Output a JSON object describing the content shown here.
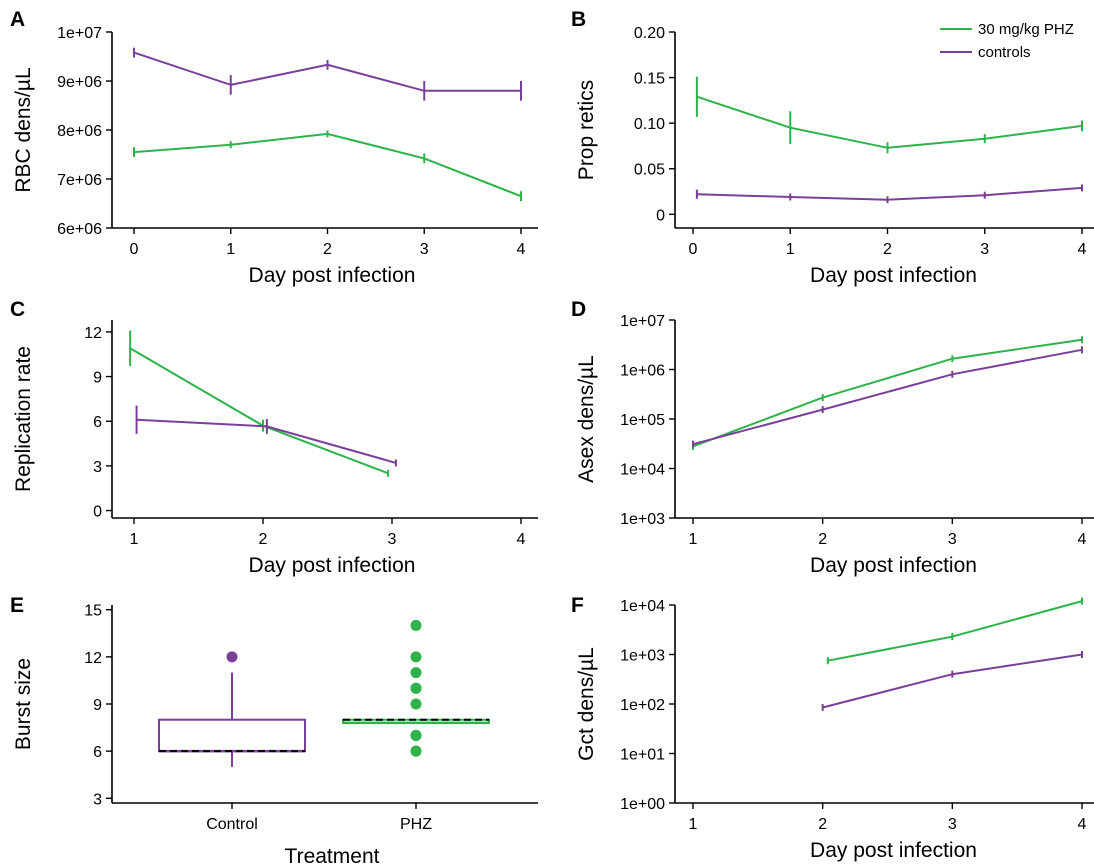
{
  "colors": {
    "phz": "#2db34a",
    "controls": "#7b3f9a"
  },
  "legend": {
    "phz": "30 mg/kg PHZ",
    "controls": "controls"
  },
  "chart_data": [
    {
      "id": "A",
      "type": "line",
      "scale": "linear",
      "xlabel": "Day post infection",
      "ylabel": "RBC dens/µL",
      "xlim": [
        0,
        4
      ],
      "xticks": [
        0,
        1,
        2,
        3,
        4
      ],
      "ylim": [
        6000000,
        10000000
      ],
      "yticks": [
        6000000,
        7000000,
        8000000,
        9000000,
        10000000
      ],
      "yticklabels": [
        "6e+06",
        "7e+06",
        "8e+06",
        "9e+06",
        "1e+07"
      ],
      "series": [
        {
          "key": "controls",
          "x": [
            0,
            1,
            2,
            3,
            4
          ],
          "y": [
            9580000,
            8920000,
            9330000,
            8800000,
            8800000
          ],
          "err": [
            100000,
            200000,
            100000,
            200000,
            200000
          ]
        },
        {
          "key": "phz",
          "x": [
            0,
            1,
            2,
            3,
            4
          ],
          "y": [
            7550000,
            7700000,
            7920000,
            7420000,
            6650000
          ],
          "err": [
            100000,
            60000,
            70000,
            100000,
            100000
          ]
        }
      ]
    },
    {
      "id": "B",
      "type": "line",
      "scale": "linear",
      "xlabel": "Day post infection",
      "ylabel": "Prop retics",
      "xlim": [
        0,
        4
      ],
      "xticks": [
        0,
        1,
        2,
        3,
        4
      ],
      "ylim": [
        -0.015,
        0.2
      ],
      "yticks": [
        0,
        0.05,
        0.1,
        0.15,
        0.2
      ],
      "yticklabels": [
        "0",
        "0.05",
        "0.10",
        "0.15",
        "0.20"
      ],
      "series": [
        {
          "key": "phz",
          "x": [
            0.04,
            1,
            2,
            3,
            4
          ],
          "y": [
            0.129,
            0.095,
            0.073,
            0.083,
            0.097
          ],
          "err": [
            0.022,
            0.018,
            0.006,
            0.005,
            0.006
          ]
        },
        {
          "key": "controls",
          "x": [
            0.04,
            1,
            2,
            3,
            4
          ],
          "y": [
            0.022,
            0.019,
            0.016,
            0.021,
            0.029
          ],
          "err": [
            0.005,
            0.002,
            0.001,
            0.002,
            0.001
          ]
        }
      ]
    },
    {
      "id": "C",
      "type": "line",
      "scale": "linear",
      "xlabel": "Day post infection",
      "ylabel": "Replication rate",
      "xlim": [
        1,
        4
      ],
      "xticks": [
        1,
        2,
        3,
        4
      ],
      "ylim": [
        -0.5,
        12.8
      ],
      "yticks": [
        0,
        3,
        6,
        9,
        12
      ],
      "yticklabels": [
        "0",
        "3",
        "6",
        "9",
        "12"
      ],
      "series": [
        {
          "key": "phz",
          "x": [
            0.97,
            2,
            2.97
          ],
          "y": [
            10.9,
            5.7,
            2.5
          ],
          "err": [
            1.2,
            0.4,
            0.2
          ]
        },
        {
          "key": "controls",
          "x": [
            1.02,
            2.03,
            3.03
          ],
          "y": [
            6.1,
            5.65,
            3.2
          ],
          "err": [
            0.95,
            0.5,
            0.15
          ]
        }
      ]
    },
    {
      "id": "D",
      "type": "line",
      "scale": "log",
      "xlabel": "Day post infection",
      "ylabel": "Asex dens/µL",
      "xlim": [
        1,
        4
      ],
      "xticks": [
        1,
        2,
        3,
        4
      ],
      "ylim": [
        1000,
        10000000
      ],
      "yticks": [
        1000,
        10000,
        100000,
        1000000,
        10000000
      ],
      "yticklabels": [
        "1e+03",
        "1e+04",
        "1e+05",
        "1e+06",
        "1e+07"
      ],
      "series": [
        {
          "key": "phz",
          "x": [
            1,
            2,
            3,
            4
          ],
          "y": [
            28000,
            270000,
            1650000,
            4000000
          ],
          "err": [
            0,
            0,
            0,
            0
          ]
        },
        {
          "key": "controls",
          "x": [
            1,
            2,
            3,
            4
          ],
          "y": [
            31000,
            155000,
            800000,
            2500000
          ],
          "err": [
            0.05,
            0.03,
            0,
            0
          ]
        }
      ]
    },
    {
      "id": "E",
      "type": "box",
      "xlabel": "Treatment",
      "ylabel": "Burst size",
      "categories": [
        "Control",
        "PHZ"
      ],
      "ylim": [
        2.7,
        15.3
      ],
      "yticks": [
        3,
        6,
        9,
        12,
        15
      ],
      "yticklabels": [
        "3",
        "6",
        "9",
        "12",
        "15"
      ],
      "boxes": [
        {
          "key": "controls",
          "q1": 6,
          "median": 6,
          "q3": 8,
          "whisker_low": 5,
          "whisker_high": 11,
          "mean": 6,
          "outliers": [
            12
          ]
        },
        {
          "key": "phz",
          "q1": 7.8,
          "median": 7.8,
          "q3": 8,
          "whisker_low": 7.8,
          "whisker_high": 8,
          "mean": 8,
          "outliers": [
            6,
            6,
            7,
            7,
            9,
            10,
            10,
            11,
            12,
            14
          ]
        }
      ]
    },
    {
      "id": "F",
      "type": "line",
      "scale": "log",
      "xlabel": "Day post infection",
      "ylabel": "Gct dens/µL",
      "xlim": [
        1,
        4
      ],
      "xticks": [
        1,
        2,
        3,
        4
      ],
      "ylim": [
        1,
        10000
      ],
      "yticks": [
        1,
        10,
        100,
        1000,
        10000
      ],
      "yticklabels": [
        "1e+00",
        "1e+01",
        "1e+02",
        "1e+03",
        "1e+04"
      ],
      "series": [
        {
          "key": "phz",
          "x": [
            2.04,
            3,
            4
          ],
          "y": [
            750,
            2300,
            12000
          ],
          "err": [
            0,
            0,
            0
          ]
        },
        {
          "key": "controls",
          "x": [
            2,
            3,
            4
          ],
          "y": [
            85,
            400,
            1000
          ],
          "err": [
            0,
            0,
            0
          ]
        }
      ]
    }
  ]
}
